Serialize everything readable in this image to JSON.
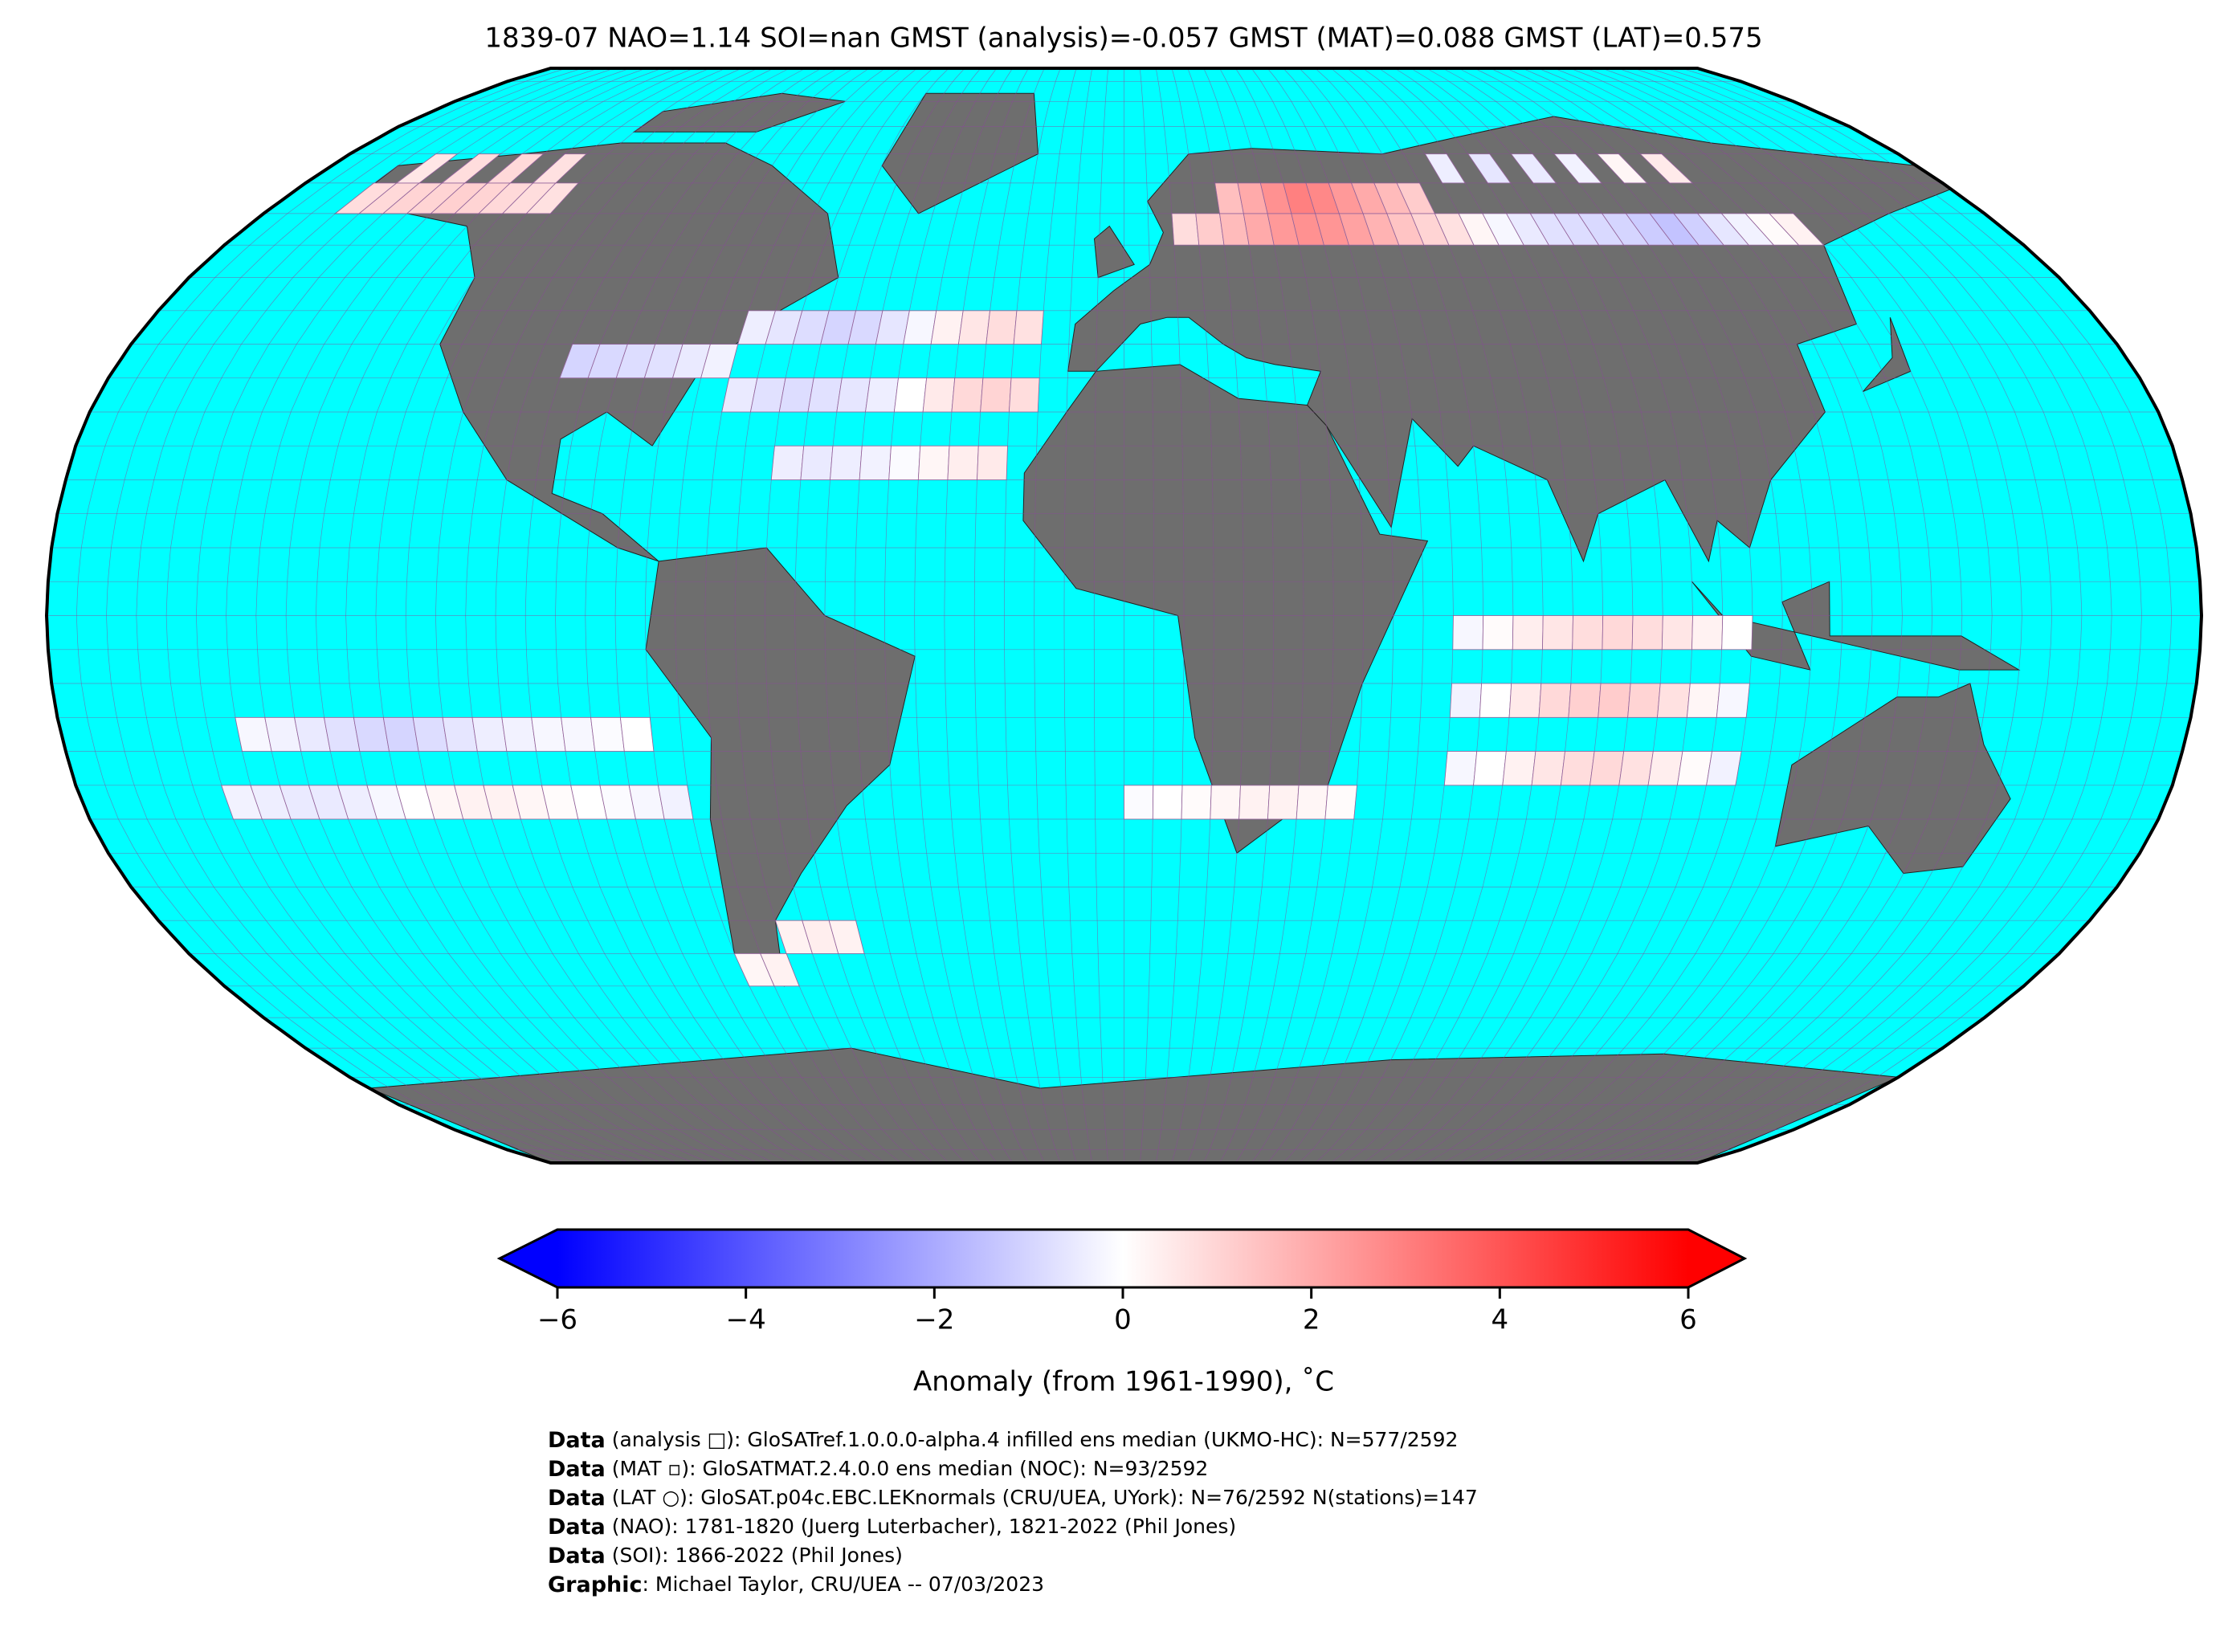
{
  "chart_data": {
    "type": "map",
    "title": "1839-07 NAO=1.14 SOI=nan GMST (analysis)=-0.057 GMST (MAT)=0.088 GMST (LAT)=0.575",
    "ocean_color": "#00ffff",
    "land_color": "#6e6e6e",
    "grid": true,
    "cells": {
      "lon": [
        -165,
        -160,
        -155,
        -150,
        -145,
        -140,
        -135,
        -130,
        -125,
        -160,
        -150,
        -140,
        -130,
        -100,
        -95,
        -90,
        -85,
        -80,
        -75,
        -70,
        -65,
        -60,
        -55,
        -50,
        -45,
        -40,
        -35,
        -30,
        -25,
        -20,
        -70,
        -65,
        -60,
        -55,
        -50,
        -45,
        -40,
        -35,
        -30,
        -25,
        -20,
        -60,
        -55,
        -50,
        -45,
        -40,
        -35,
        -30,
        -25,
        10,
        15,
        20,
        25,
        30,
        35,
        40,
        45,
        50,
        55,
        60,
        65,
        20,
        25,
        30,
        35,
        40,
        45,
        50,
        55,
        60,
        70,
        75,
        80,
        85,
        90,
        95,
        100,
        105,
        110,
        115,
        120,
        125,
        130,
        135,
        70,
        80,
        90,
        100,
        110,
        120,
        55,
        60,
        65,
        70,
        75,
        80,
        85,
        90,
        95,
        100,
        55,
        60,
        65,
        70,
        75,
        80,
        85,
        90,
        95,
        100,
        55,
        60,
        65,
        70,
        75,
        80,
        85,
        90,
        95,
        100,
        -150,
        -145,
        -140,
        -135,
        -130,
        -125,
        -120,
        -115,
        -110,
        -105,
        -100,
        -95,
        -90,
        -85,
        -155,
        -150,
        -145,
        -140,
        -135,
        -130,
        -125,
        -120,
        -115,
        -110,
        -105,
        -100,
        -95,
        -90,
        -85,
        -80,
        0,
        5,
        10,
        15,
        20,
        25,
        30,
        35,
        -75,
        -70,
        -65,
        -60,
        -55
      ],
      "lat": [
        60,
        60,
        60,
        60,
        60,
        60,
        60,
        60,
        60,
        65,
        65,
        65,
        65,
        35,
        35,
        35,
        35,
        35,
        35,
        40,
        40,
        40,
        40,
        40,
        40,
        40,
        40,
        40,
        40,
        40,
        30,
        30,
        30,
        30,
        30,
        30,
        30,
        30,
        30,
        30,
        30,
        20,
        20,
        20,
        20,
        20,
        20,
        20,
        20,
        55,
        55,
        55,
        55,
        55,
        55,
        55,
        55,
        55,
        55,
        55,
        55,
        60,
        60,
        60,
        60,
        60,
        60,
        60,
        60,
        60,
        55,
        55,
        55,
        55,
        55,
        55,
        55,
        55,
        55,
        55,
        55,
        55,
        55,
        55,
        65,
        65,
        65,
        65,
        65,
        65,
        -5,
        -5,
        -5,
        -5,
        -5,
        -5,
        -5,
        -5,
        -5,
        -5,
        -15,
        -15,
        -15,
        -15,
        -15,
        -15,
        -15,
        -15,
        -15,
        -15,
        -25,
        -25,
        -25,
        -25,
        -25,
        -25,
        -25,
        -25,
        -25,
        -25,
        -20,
        -20,
        -20,
        -20,
        -20,
        -20,
        -20,
        -20,
        -20,
        -20,
        -20,
        -20,
        -20,
        -20,
        -30,
        -30,
        -30,
        -30,
        -30,
        -30,
        -30,
        -30,
        -30,
        -30,
        -30,
        -30,
        -30,
        -30,
        -30,
        -30,
        -30,
        -30,
        -30,
        -30,
        -30,
        -30,
        -30,
        -30,
        -55,
        -55,
        -50,
        -50,
        -50
      ],
      "values": [
        0.8,
        0.9,
        1.0,
        1.0,
        1.1,
        1.0,
        0.9,
        0.8,
        0.7,
        0.6,
        0.8,
        0.9,
        0.7,
        -1.0,
        -0.9,
        -0.8,
        -0.7,
        -0.5,
        -0.3,
        -0.4,
        -0.6,
        -0.8,
        -1.0,
        -0.9,
        -0.6,
        -0.2,
        0.3,
        0.6,
        0.8,
        0.7,
        -0.5,
        -0.7,
        -0.8,
        -0.7,
        -0.6,
        -0.4,
        0.0,
        0.5,
        0.9,
        1.0,
        0.8,
        -0.4,
        -0.5,
        -0.4,
        -0.3,
        -0.1,
        0.2,
        0.4,
        0.5,
        0.8,
        1.2,
        1.6,
        2.0,
        2.4,
        2.6,
        2.5,
        2.2,
        1.8,
        1.4,
        1.0,
        0.7,
        1.5,
        2.0,
        2.6,
        3.0,
        2.8,
        2.4,
        2.0,
        1.6,
        1.2,
        0.2,
        -0.2,
        -0.5,
        -0.7,
        -0.8,
        -0.9,
        -1.0,
        -1.2,
        -1.4,
        -1.1,
        -0.6,
        -0.3,
        0.1,
        0.3,
        -0.4,
        -0.6,
        -0.5,
        -0.3,
        0.2,
        0.5,
        -0.2,
        0.1,
        0.4,
        0.6,
        0.8,
        0.9,
        0.8,
        0.6,
        0.3,
        0.0,
        -0.3,
        0.0,
        0.5,
        0.9,
        1.1,
        1.2,
        1.0,
        0.7,
        0.2,
        -0.2,
        -0.2,
        0.0,
        0.3,
        0.6,
        0.8,
        0.9,
        0.7,
        0.4,
        0.1,
        -0.3,
        -0.2,
        -0.3,
        -0.5,
        -0.7,
        -0.9,
        -1.0,
        -0.8,
        -0.6,
        -0.4,
        -0.3,
        -0.2,
        -0.2,
        -0.1,
        0.0,
        -0.3,
        -0.4,
        -0.5,
        -0.5,
        -0.4,
        -0.2,
        0.0,
        0.2,
        0.3,
        0.3,
        0.2,
        0.1,
        0.0,
        -0.1,
        -0.2,
        -0.3,
        -0.1,
        0.0,
        0.1,
        0.2,
        0.3,
        0.3,
        0.2,
        0.1,
        0.2,
        0.3,
        0.3,
        0.4,
        0.3
      ]
    },
    "cmap": [
      "#0000ff",
      "#ffffff",
      "#ff0000"
    ],
    "clim": [
      -6,
      6
    ],
    "cticks": [
      {
        "value": -6,
        "label": "−6"
      },
      {
        "value": -4,
        "label": "−4"
      },
      {
        "value": -2,
        "label": "−2"
      },
      0,
      2,
      4,
      6
    ],
    "colorbar_label": "Anomaly (from 1961-1990), ˚C",
    "footer": [
      {
        "bold": "Data",
        "text": " (analysis □): GloSATref.1.0.0.0-alpha.4 infilled ens median (UKMO-HC): N=577/2592"
      },
      {
        "bold": "Data",
        "text": " (MAT ▫): GloSATMAT.2.4.0.0 ens median (NOC): N=93/2592"
      },
      {
        "bold": "Data",
        "text": " (LAT ○): GloSAT.p04c.EBC.LEKnormals (CRU/UEA, UYork): N=76/2592 N(stations)=147"
      },
      {
        "bold": "Data",
        "text": " (NAO): 1781-1820 (Juerg Luterbacher), 1821-2022 (Phil Jones)"
      },
      {
        "bold": "Data",
        "text": " (SOI): 1866-2022 (Phil Jones)"
      },
      {
        "bold": "Graphic",
        "text": ": Michael Taylor, CRU/UEA -- 07/03/2023"
      }
    ]
  }
}
